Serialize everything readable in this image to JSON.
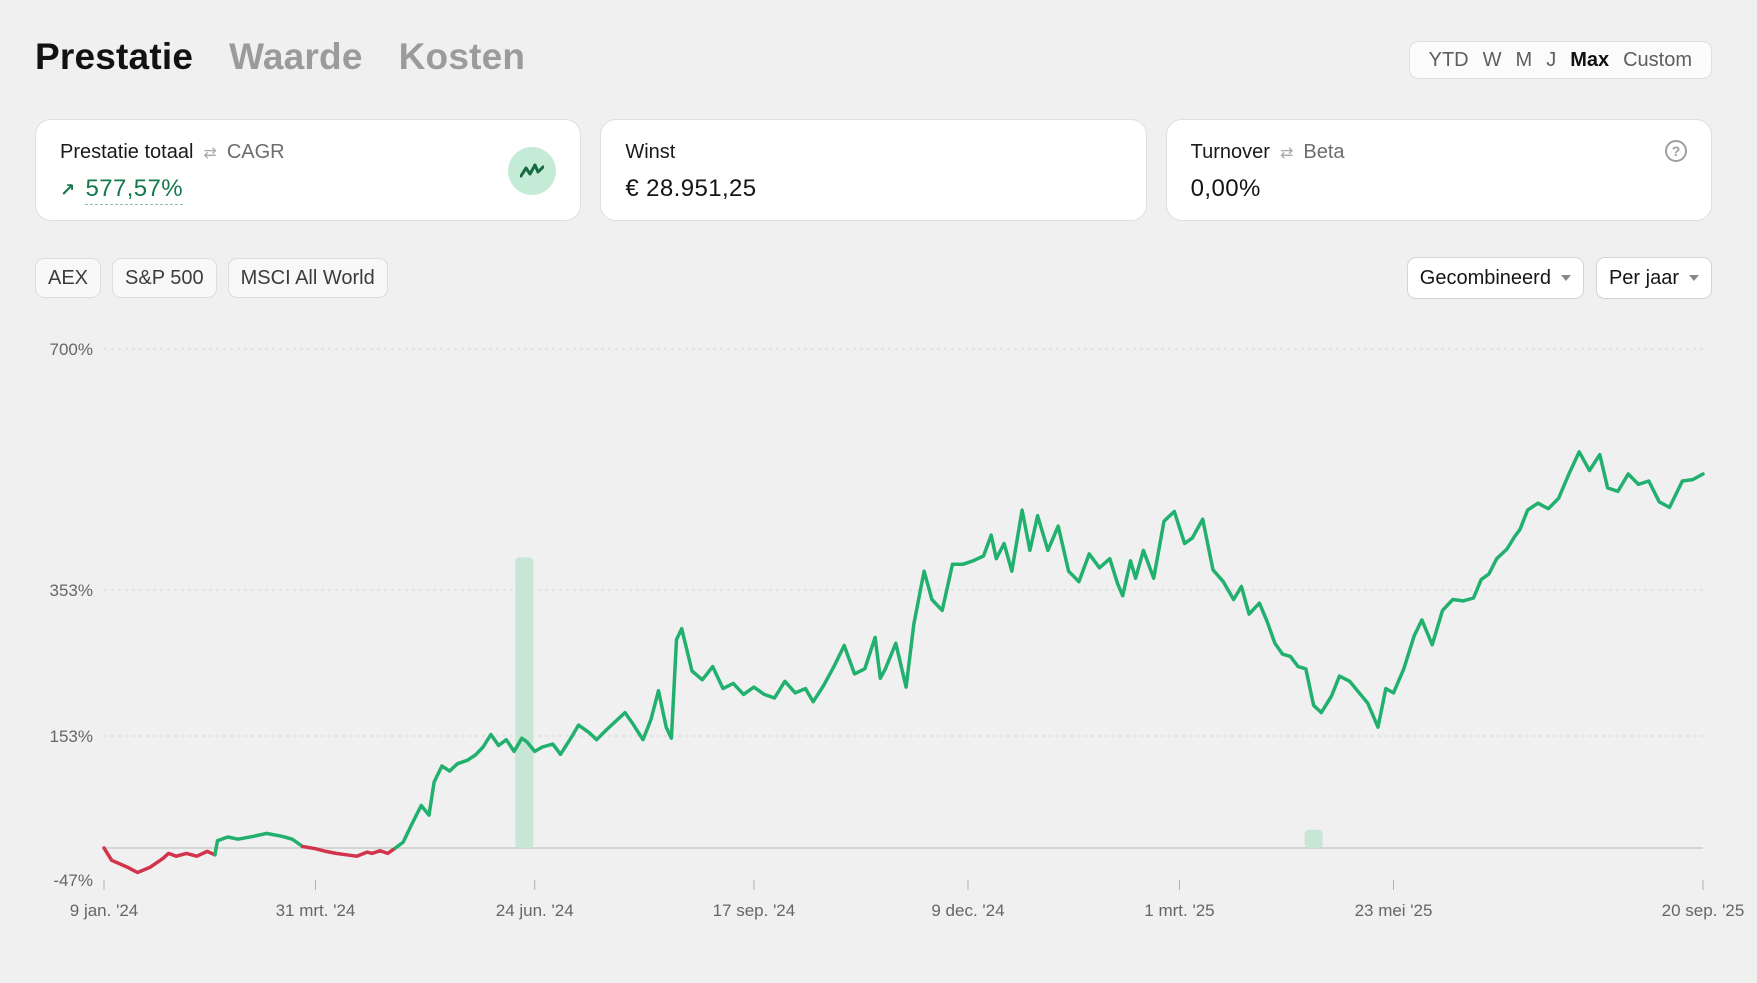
{
  "tabs": [
    {
      "label": "Prestatie",
      "active": true
    },
    {
      "label": "Waarde",
      "active": false
    },
    {
      "label": "Kosten",
      "active": false
    }
  ],
  "range": {
    "options": [
      "YTD",
      "W",
      "M",
      "J",
      "Max",
      "Custom"
    ],
    "selected": "Max"
  },
  "cards": {
    "performance": {
      "label": "Prestatie totaal",
      "alt_label": "CAGR",
      "value": "577,57%",
      "icon": "trend-chart-icon"
    },
    "profit": {
      "label": "Winst",
      "value": "€ 28.951,25"
    },
    "turnover": {
      "label": "Turnover",
      "alt_label": "Beta",
      "value": "0,00%",
      "icon": "help-icon"
    }
  },
  "benchmarks": [
    "AEX",
    "S&P 500",
    "MSCI All World"
  ],
  "selects": {
    "mode": "Gecombineerd",
    "period": "Per jaar"
  },
  "colors": {
    "positive": "#22b06e",
    "negative": "#d1344b",
    "highlight": "#c7e6d5"
  },
  "chart_data": {
    "type": "line",
    "y_ticks": [
      "700%",
      "353%",
      "153%",
      "-47%"
    ],
    "x_ticks": [
      "9 jan. '24",
      "31 mrt. '24",
      "24 jun. '24",
      "17 sep. '24",
      "9 dec. '24",
      "1 mrt. '25",
      "23 mei '25",
      "20 sep. '25"
    ],
    "ylim": [
      -47,
      700
    ],
    "xlim": [
      "2024-01-09",
      "2025-09-20"
    ],
    "grid": true,
    "highlighted_periods": [
      {
        "date": "2024-06-20",
        "value": 400
      },
      {
        "date": "2025-04-22",
        "value": 25
      }
    ],
    "series": [
      {
        "x": [
          "2024-01-09",
          "2024-01-12",
          "2024-01-18",
          "2024-01-22",
          "2024-01-27",
          "2024-02-01",
          "2024-02-03",
          "2024-02-06",
          "2024-02-10",
          "2024-02-14",
          "2024-02-18",
          "2024-02-21",
          "2024-02-22",
          "2024-02-26",
          "2024-03-01",
          "2024-03-07",
          "2024-03-12",
          "2024-03-18",
          "2024-03-22",
          "2024-03-26",
          "2024-03-31",
          "2024-04-04",
          "2024-04-08",
          "2024-04-12",
          "2024-04-16",
          "2024-04-20",
          "2024-04-22",
          "2024-04-25",
          "2024-04-28",
          "2024-05-01",
          "2024-05-04",
          "2024-05-07",
          "2024-05-11",
          "2024-05-14",
          "2024-05-16",
          "2024-05-19",
          "2024-05-22",
          "2024-05-25",
          "2024-05-29",
          "2024-06-01",
          "2024-06-04",
          "2024-06-07",
          "2024-06-10",
          "2024-06-13",
          "2024-06-16",
          "2024-06-19",
          "2024-06-21",
          "2024-06-24",
          "2024-06-27",
          "2024-07-01",
          "2024-07-04",
          "2024-07-08",
          "2024-07-11",
          "2024-07-15",
          "2024-07-18",
          "2024-07-22",
          "2024-07-26",
          "2024-07-29",
          "2024-08-01",
          "2024-08-05",
          "2024-08-08",
          "2024-08-11",
          "2024-08-14",
          "2024-08-16",
          "2024-08-18",
          "2024-08-20",
          "2024-08-24",
          "2024-08-28",
          "2024-09-01",
          "2024-09-05",
          "2024-09-09",
          "2024-09-13",
          "2024-09-17",
          "2024-09-21",
          "2024-09-25",
          "2024-09-29",
          "2024-10-03",
          "2024-10-07",
          "2024-10-10",
          "2024-10-14",
          "2024-10-18",
          "2024-10-22",
          "2024-10-26",
          "2024-10-30",
          "2024-11-03",
          "2024-11-05",
          "2024-11-07",
          "2024-11-11",
          "2024-11-15",
          "2024-11-18",
          "2024-11-22",
          "2024-11-25",
          "2024-11-29",
          "2024-12-03",
          "2024-12-07",
          "2024-12-11",
          "2024-12-15",
          "2024-12-18",
          "2024-12-20",
          "2024-12-23",
          "2024-12-26",
          "2024-12-30",
          "2025-01-02",
          "2025-01-05",
          "2025-01-09",
          "2025-01-13",
          "2025-01-17",
          "2025-01-21",
          "2025-01-25",
          "2025-01-29",
          "2025-02-02",
          "2025-02-05",
          "2025-02-07",
          "2025-02-10",
          "2025-02-12",
          "2025-02-15",
          "2025-02-19",
          "2025-02-23",
          "2025-02-27",
          "2025-03-03",
          "2025-03-06",
          "2025-03-10",
          "2025-03-14",
          "2025-03-18",
          "2025-03-22",
          "2025-03-25",
          "2025-03-28",
          "2025-04-01",
          "2025-04-04",
          "2025-04-07",
          "2025-04-10",
          "2025-04-13",
          "2025-04-16",
          "2025-04-19",
          "2025-04-22",
          "2025-04-25",
          "2025-04-29",
          "2025-05-02",
          "2025-05-06",
          "2025-05-09",
          "2025-05-13",
          "2025-05-17",
          "2025-05-20",
          "2025-05-23",
          "2025-05-27",
          "2025-05-31",
          "2025-06-03",
          "2025-06-07",
          "2025-06-11",
          "2025-06-15",
          "2025-06-19",
          "2025-06-23",
          "2025-06-26",
          "2025-06-29",
          "2025-07-02",
          "2025-07-06",
          "2025-07-09",
          "2025-07-11",
          "2025-07-14",
          "2025-07-18",
          "2025-07-22",
          "2025-07-26",
          "2025-07-30",
          "2025-08-03",
          "2025-08-07",
          "2025-08-11",
          "2025-08-14",
          "2025-08-18",
          "2025-08-22",
          "2025-08-26",
          "2025-08-30",
          "2025-09-03",
          "2025-09-07",
          "2025-09-12",
          "2025-09-16",
          "2025-09-20"
        ],
        "y": [
          0,
          -18,
          -28,
          -36,
          -28,
          -15,
          -8,
          -12,
          -8,
          -12,
          -5,
          -10,
          10,
          15,
          12,
          16,
          20,
          16,
          12,
          2,
          -1,
          -5,
          -8,
          -10,
          -12,
          -6,
          -8,
          -4,
          -8,
          0,
          8,
          30,
          58,
          45,
          90,
          112,
          105,
          115,
          120,
          127,
          138,
          155,
          140,
          148,
          132,
          150,
          145,
          132,
          138,
          142,
          128,
          150,
          168,
          158,
          148,
          162,
          175,
          185,
          170,
          148,
          175,
          215,
          165,
          150,
          285,
          300,
          242,
          230,
          248,
          218,
          225,
          210,
          220,
          210,
          205,
          228,
          212,
          218,
          200,
          222,
          248,
          277,
          238,
          245,
          288,
          232,
          245,
          280,
          220,
          306,
          380,
          340,
          325,
          390,
          390,
          395,
          402,
          432,
          398,
          420,
          380,
          468,
          410,
          460,
          410,
          445,
          380,
          365,
          405,
          385,
          398,
          362,
          345,
          395,
          370,
          410,
          370,
          452,
          466,
          420,
          428,
          455,
          382,
          365,
          340,
          358,
          320,
          335,
          310,
          280,
          265,
          262,
          248,
          245,
          195,
          185,
          208,
          235,
          228,
          215,
          198,
          165,
          218,
          212,
          245,
          290,
          312,
          278,
          325,
          340,
          338,
          342,
          368,
          376,
          398,
          412,
          430,
          440,
          468,
          478,
          470,
          485,
          520,
          552,
          525,
          548,
          500,
          495,
          520,
          505,
          510,
          480,
          472,
          510,
          512,
          520
        ],
        "color_note": "green above 0%, red below 0%"
      }
    ]
  }
}
